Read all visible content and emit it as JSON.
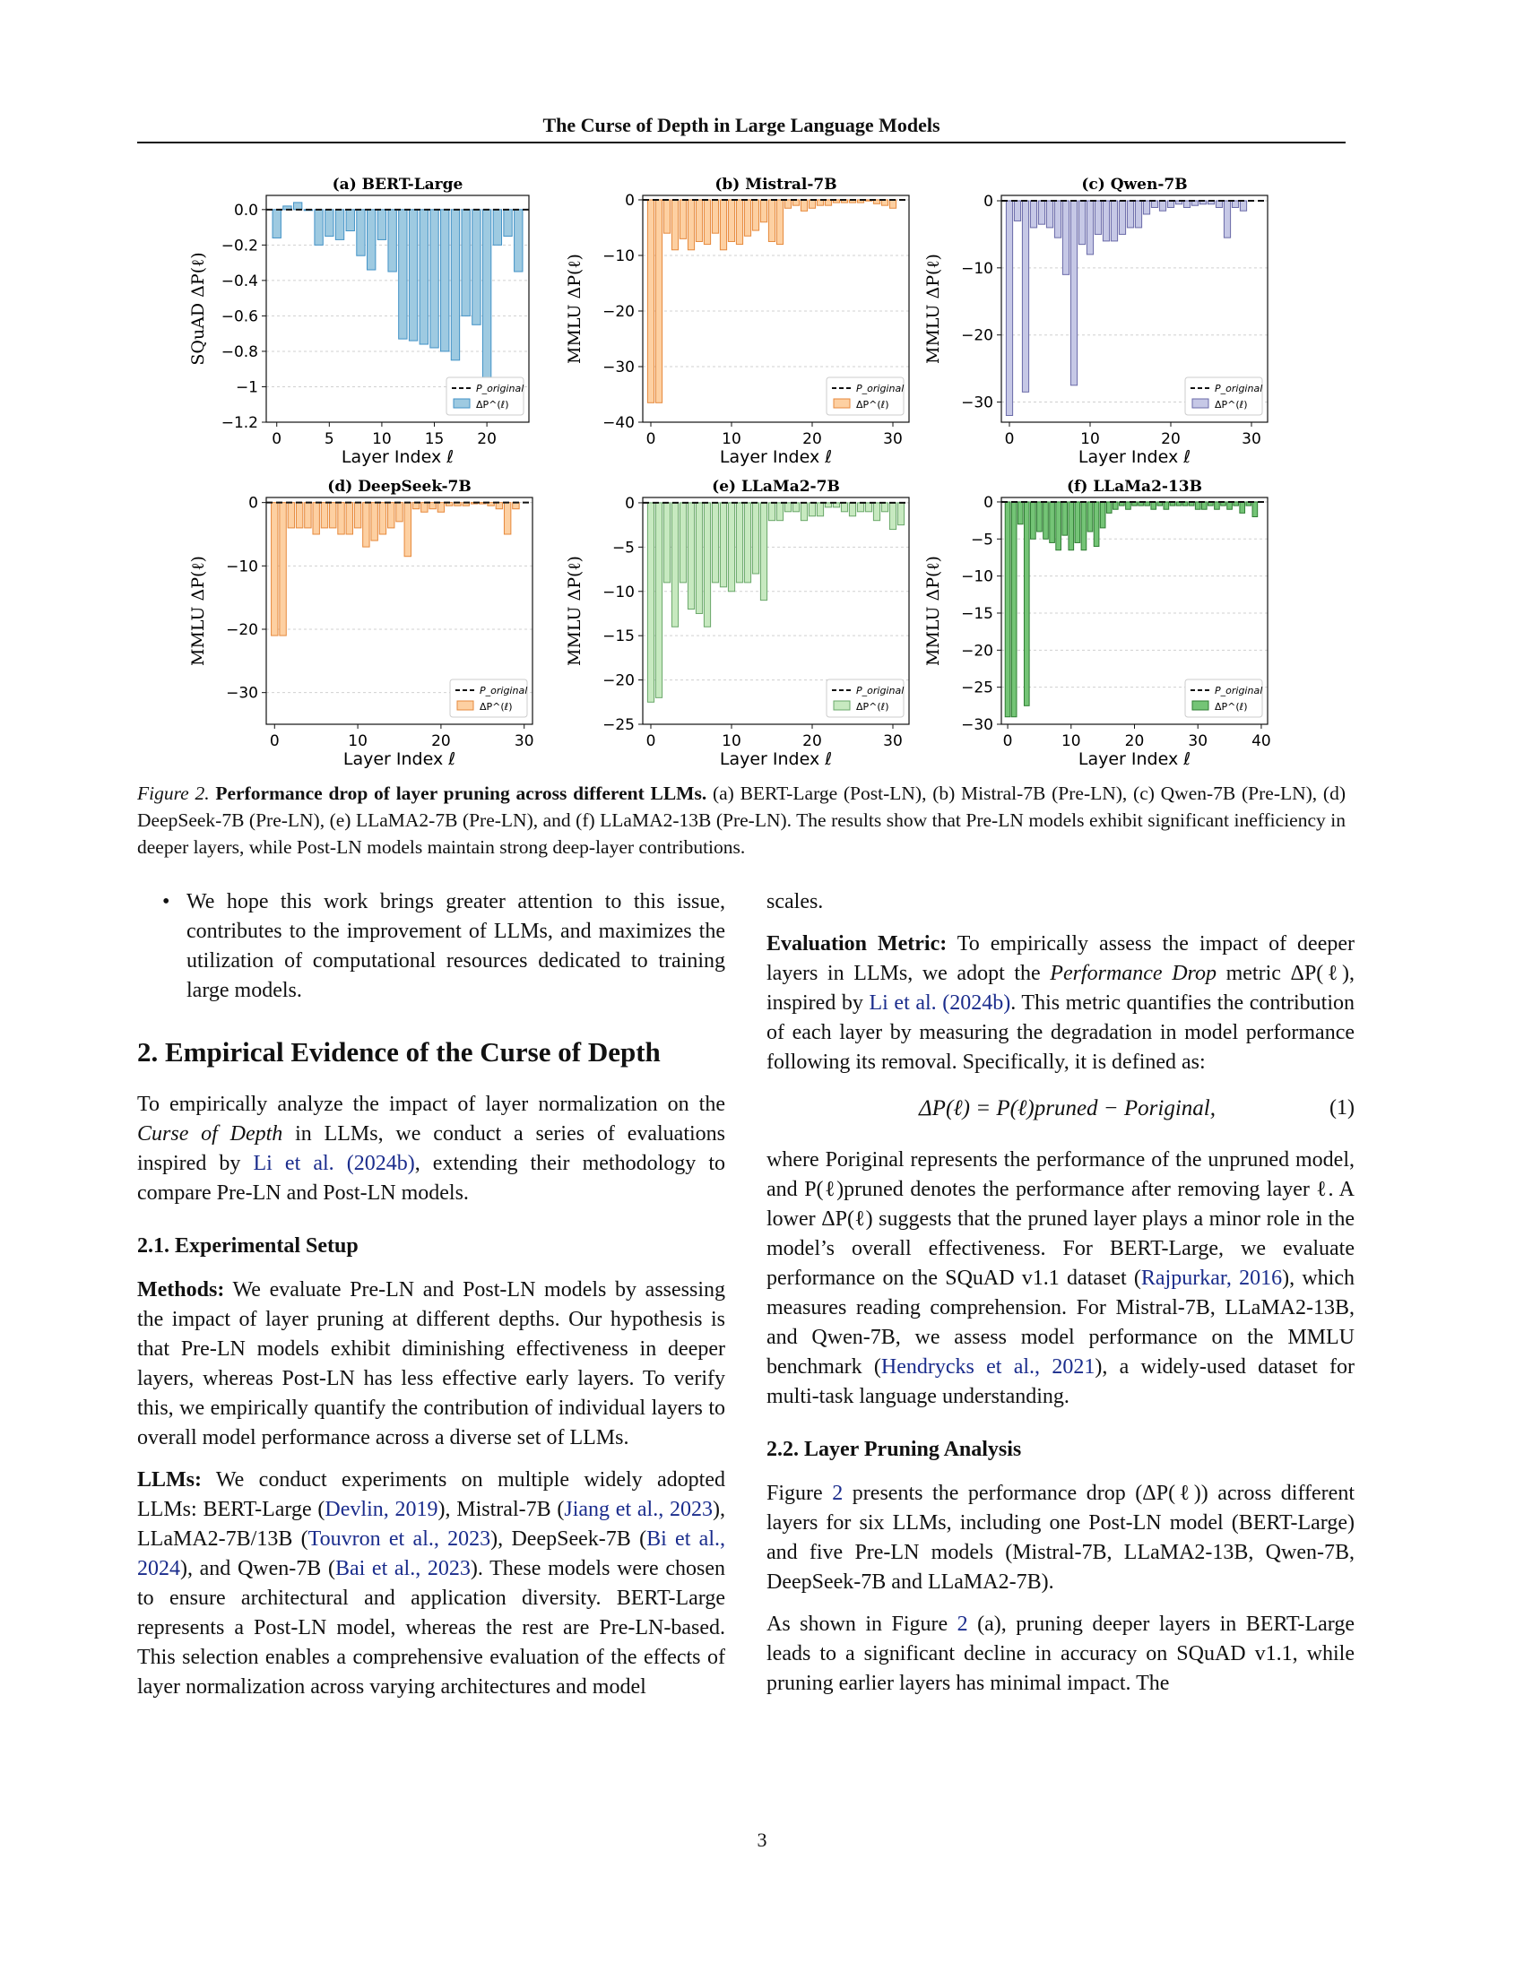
{
  "header": {
    "title": "The Curse of Depth in Large Language Models"
  },
  "chart_data": [
    {
      "type": "bar",
      "panel": "(a) BERT-Large",
      "ylabel": "SQuAD ΔP(ℓ)",
      "xlabel": "Layer Index ℓ",
      "ylim": [
        -1.2,
        0.08
      ],
      "yticks": [
        0.0,
        -0.2,
        -0.4,
        -0.6,
        -0.8,
        -1.0,
        -1.2
      ],
      "xticks": [
        0,
        5,
        10,
        15,
        20
      ],
      "xlim": [
        -1,
        24
      ],
      "color": "#9ecae1",
      "edge": "#4292c6",
      "values": [
        -0.16,
        0.02,
        0.04,
        0.0,
        -0.2,
        -0.15,
        -0.17,
        -0.12,
        -0.26,
        -0.34,
        -0.17,
        -0.35,
        -0.73,
        -0.74,
        -0.76,
        -0.78,
        -0.8,
        -0.85,
        -0.6,
        -0.65,
        -1.0,
        -0.2,
        -0.15,
        -0.35
      ],
      "legend": [
        "P_original",
        "ΔP^(ℓ)"
      ]
    },
    {
      "type": "bar",
      "panel": "(b) Mistral-7B",
      "ylabel": "MMLU ΔP(ℓ)",
      "xlabel": "Layer Index ℓ",
      "ylim": [
        -40,
        0.8
      ],
      "yticks": [
        0,
        -10,
        -20,
        -30,
        -40
      ],
      "xticks": [
        0,
        10,
        20,
        30
      ],
      "xlim": [
        -1,
        32
      ],
      "color": "#fdd0a2",
      "edge": "#e6893c",
      "values": [
        -36.5,
        -36.5,
        -6.0,
        -9.0,
        -7.0,
        -9.0,
        -7.5,
        -8.0,
        -6.0,
        -9.0,
        -7.5,
        -8.0,
        -6.5,
        -5.5,
        -4.0,
        -7.5,
        -8.0,
        -1.5,
        -1.0,
        -2.0,
        -1.5,
        -1.0,
        -1.0,
        -0.5,
        -0.5,
        -0.5,
        -0.5,
        -0.2,
        -0.7,
        -1.0,
        -1.5
      ],
      "legend": [
        "P_original",
        "ΔP^(ℓ)"
      ]
    },
    {
      "type": "bar",
      "panel": "(c) Qwen-7B",
      "ylabel": "MMLU ΔP(ℓ)",
      "xlabel": "Layer Index ℓ",
      "ylim": [
        -33,
        0.8
      ],
      "yticks": [
        0,
        -10,
        -20,
        -30
      ],
      "xticks": [
        0,
        10,
        20,
        30
      ],
      "xlim": [
        -1,
        32
      ],
      "color": "#c6c8e6",
      "edge": "#6a6aa8",
      "values": [
        -32,
        -3,
        -28.5,
        -4,
        -3.5,
        -4,
        -5.5,
        -11,
        -27.5,
        -6.5,
        -8,
        -5,
        -6,
        -6,
        -5,
        -4,
        -4,
        -2,
        -1,
        -1.5,
        -1,
        -0.5,
        -1,
        -0.7,
        -0.5,
        -0.5,
        -1,
        -5.5,
        -1,
        -1.5
      ],
      "legend": [
        "P_original",
        "ΔP^(ℓ)"
      ]
    },
    {
      "type": "bar",
      "panel": "(d) DeepSeek-7B",
      "ylabel": "MMLU ΔP(ℓ)",
      "xlabel": "Layer Index ℓ",
      "ylim": [
        -35,
        0.8
      ],
      "yticks": [
        0,
        -10,
        -20,
        -30
      ],
      "xticks": [
        0,
        10,
        20,
        30
      ],
      "xlim": [
        -1,
        31
      ],
      "color": "#fdd0a2",
      "edge": "#e6893c",
      "values": [
        -21,
        -21,
        -4,
        -4,
        -4,
        -5,
        -4,
        -4,
        -5,
        -5,
        -4,
        -7,
        -6,
        -5,
        -4,
        -3,
        -8.5,
        -1,
        -1.5,
        -1,
        -1.5,
        -0.5,
        -0.5,
        -0.5,
        -0.2,
        -0.2,
        -0.5,
        -1,
        -5,
        -1
      ],
      "legend": [
        "P_original",
        "ΔP^(ℓ)"
      ]
    },
    {
      "type": "bar",
      "panel": "(e) LLaMa2-7B",
      "ylabel": "MMLU ΔP(ℓ)",
      "xlabel": "Layer Index ℓ",
      "ylim": [
        -25,
        0.6
      ],
      "yticks": [
        0,
        -5,
        -10,
        -15,
        -20,
        -25
      ],
      "xticks": [
        0,
        10,
        20,
        30
      ],
      "xlim": [
        -1,
        32
      ],
      "color": "#c7e9c0",
      "edge": "#6aa86a",
      "values": [
        -22.5,
        -22,
        -9,
        -14,
        -9,
        -12,
        -12.5,
        -14,
        -9,
        -9.5,
        -10,
        -9,
        -9,
        -8,
        -11,
        -2,
        -2,
        -1,
        -1,
        -2,
        -1.5,
        -1.5,
        -0.5,
        -0.5,
        -1,
        -1.5,
        -1,
        -1,
        -2,
        -1,
        -3,
        -2.5
      ],
      "legend": [
        "P_original",
        "ΔP^(ℓ)"
      ]
    },
    {
      "type": "bar",
      "panel": "(f) LLaMa2-13B",
      "ylabel": "MMLU ΔP(ℓ)",
      "xlabel": "Layer Index ℓ",
      "ylim": [
        -30,
        0.6
      ],
      "yticks": [
        0,
        -5,
        -10,
        -15,
        -20,
        -25,
        -30
      ],
      "xticks": [
        0,
        10,
        20,
        30,
        40
      ],
      "xlim": [
        -1,
        41
      ],
      "color": "#74c476",
      "edge": "#2e7d32",
      "values": [
        -29,
        -29,
        -3,
        -27.5,
        -5,
        -4,
        -5,
        -5.5,
        -6.5,
        -4.5,
        -6.5,
        -5.5,
        -6.5,
        -4,
        -6,
        -3.5,
        -1.5,
        -1,
        -0.5,
        -1,
        -0.5,
        -0.5,
        -0.5,
        -1,
        -0.5,
        -1,
        -0.5,
        -0.5,
        -0.5,
        -0.5,
        -1,
        -1,
        -0.5,
        -1,
        -0.5,
        -1,
        -0.5,
        -1.5,
        -0.5,
        -2
      ],
      "legend": [
        "P_original",
        "ΔP^(ℓ)"
      ]
    }
  ],
  "caption": {
    "label": "Figure 2.",
    "bold": "Performance drop of layer pruning across different LLMs.",
    "text": "(a) BERT-Large (Post-LN), (b) Mistral-7B (Pre-LN), (c) Qwen-7B (Pre-LN), (d) DeepSeek-7B (Pre-LN), (e) LLaMA2-7B (Pre-LN), and (f) LLaMA2-13B (Pre-LN). The results show that Pre-LN models exhibit significant inefficiency in deeper layers, while Post-LN models maintain strong deep-layer contributions."
  },
  "left": {
    "bullet": "We hope this work brings greater attention to this issue, contributes to the improvement of LLMs, and maximizes the utilization of computational resources dedicated to training large models.",
    "h2": "2. Empirical Evidence of the Curse of Depth",
    "intro_a": "To empirically analyze the impact of layer normalization on the ",
    "intro_i": "Curse of Depth",
    "intro_b": " in LLMs, we conduct a series of evaluations inspired by ",
    "intro_link": "Li et al. (2024b)",
    "intro_c": ", extending their methodology to compare Pre-LN and Post-LN models.",
    "h3": "2.1. Experimental Setup",
    "methods_label": "Methods:",
    "methods": " We evaluate Pre-LN and Post-LN models by assessing the impact of layer pruning at different depths. Our hypothesis is that Pre-LN models exhibit diminishing effectiveness in deeper layers, whereas Post-LN has less effective early layers. To verify this, we empirically quantify the contribution of individual layers to overall model performance across a diverse set of LLMs.",
    "llms_label": "LLMs:",
    "llms_a": " We conduct experiments on multiple widely adopted LLMs: BERT-Large (",
    "llms_l1": "Devlin, 2019",
    "llms_b": "), Mistral-7B (",
    "llms_l2": "Jiang et al., 2023",
    "llms_c": "), LLaMA2-7B/13B (",
    "llms_l3": "Touvron et al., 2023",
    "llms_d": "), DeepSeek-7B (",
    "llms_l4": "Bi et al., 2024",
    "llms_e": "), and Qwen-7B (",
    "llms_l5": "Bai et al., 2023",
    "llms_f": "). These models were chosen to ensure architectural and application diversity. BERT-Large represents a Post-LN model, whereas the rest are Pre-LN-based. This selection enables a comprehensive evaluation of the effects of layer normalization across varying architectures and model"
  },
  "right": {
    "cont": "scales.",
    "eval_label": "Evaluation Metric:",
    "eval_a": " To empirically assess the impact of deeper layers in LLMs, we adopt the ",
    "eval_i": "Performance Drop",
    "eval_b": " metric ΔP(ℓ), inspired by ",
    "eval_link": "Li et al. (2024b)",
    "eval_c": ". This metric quantifies the contribution of each layer by measuring the degradation in model performance following its removal. Specifically, it is defined as:",
    "equation": "ΔP(ℓ) = P(ℓ)pruned − Poriginal,",
    "eq_num": "(1)",
    "where_a": "where Poriginal represents the performance of the unpruned model, and P(ℓ)pruned denotes the performance after removing layer ℓ. A lower ΔP(ℓ) suggests that the pruned layer plays a minor role in the model’s overall effectiveness. For BERT-Large, we evaluate performance on the SQuAD v1.1 dataset (",
    "where_l1": "Rajpurkar, 2016",
    "where_b": "), which measures reading comprehension. For Mistral-7B, LLaMA2-13B, and Qwen-7B, we assess model performance on the MMLU benchmark (",
    "where_l2": "Hendrycks et al., 2021",
    "where_c": "), a widely-used dataset for multi-task language understanding.",
    "h3": "2.2. Layer Pruning Analysis",
    "p1_a": "Figure ",
    "p1_l": "2",
    "p1_b": " presents the performance drop (ΔP(ℓ)) across different layers for six LLMs, including one Post-LN model (BERT-Large) and five Pre-LN models (Mistral-7B, LLaMA2-13B, Qwen-7B, DeepSeek-7B and LLaMA2-7B).",
    "p2_a": "As shown in Figure ",
    "p2_l": "2",
    "p2_b": " (a), pruning deeper layers in BERT-Large leads to a significant decline in accuracy on SQuAD v1.1, while pruning earlier layers has minimal impact. The"
  },
  "page_number": "3"
}
